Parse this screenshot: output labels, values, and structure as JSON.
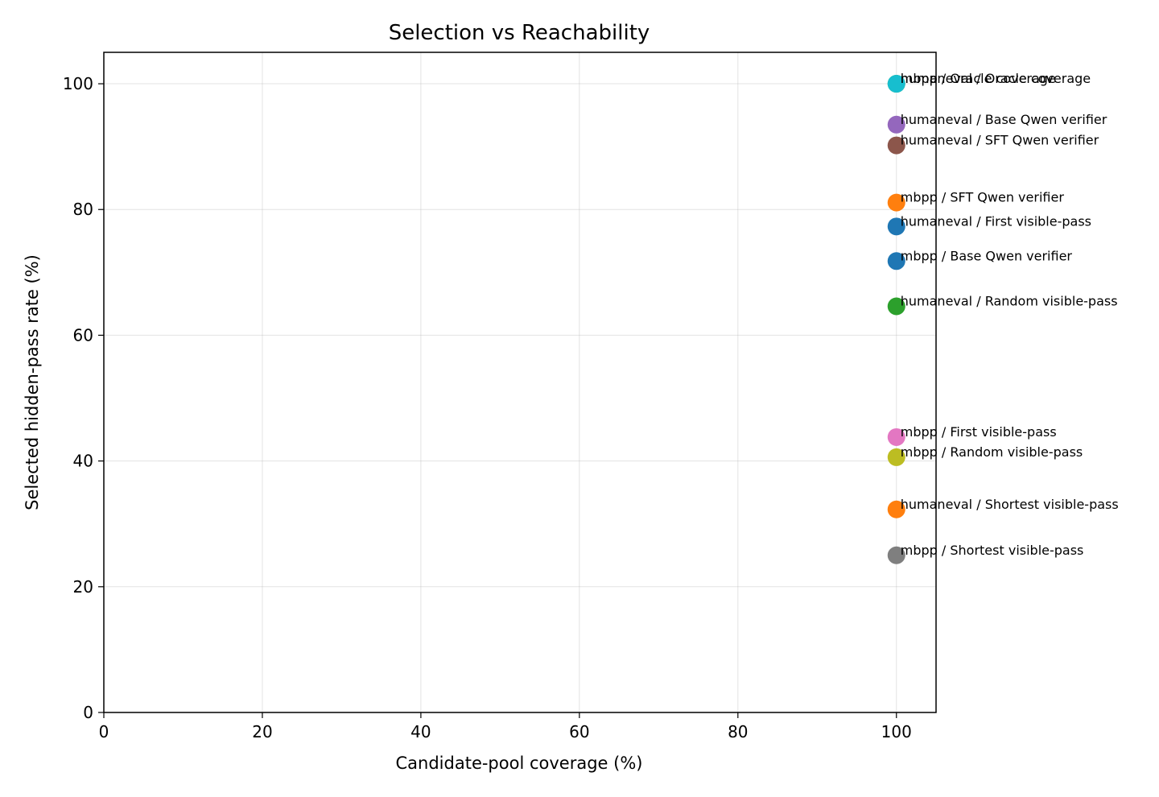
{
  "chart_data": {
    "type": "scatter",
    "title": "Selection vs Reachability",
    "xlabel": "Candidate-pool coverage (%)",
    "ylabel": "Selected hidden-pass rate (%)",
    "xlim": [
      0,
      105
    ],
    "ylim": [
      0,
      105
    ],
    "xticks": [
      0,
      20,
      40,
      60,
      80,
      100
    ],
    "yticks": [
      0,
      20,
      40,
      60,
      80,
      100
    ],
    "grid": true,
    "points": [
      {
        "label": "mbpp / Oracle coverage",
        "x": 100,
        "y": 100,
        "color": "#2ca02c"
      },
      {
        "label": "humaneval / Oracle coverage",
        "x": 100,
        "y": 100,
        "color": "#17becf"
      },
      {
        "label": "humaneval / Base Qwen verifier",
        "x": 100,
        "y": 93.5,
        "color": "#9467bd"
      },
      {
        "label": "humaneval / SFT Qwen verifier",
        "x": 100,
        "y": 90.2,
        "color": "#8c564b"
      },
      {
        "label": "mbpp / SFT Qwen verifier",
        "x": 100,
        "y": 81.1,
        "color": "#ff7f0e"
      },
      {
        "label": "humaneval / First visible-pass",
        "x": 100,
        "y": 77.3,
        "color": "#1f77b4"
      },
      {
        "label": "mbpp / Base Qwen verifier",
        "x": 100,
        "y": 71.8,
        "color": "#1f77b4"
      },
      {
        "label": "humaneval / Random visible-pass",
        "x": 100,
        "y": 64.6,
        "color": "#2ca02c"
      },
      {
        "label": "mbpp / First visible-pass",
        "x": 100,
        "y": 43.8,
        "color": "#e377c2"
      },
      {
        "label": "mbpp / Random visible-pass",
        "x": 100,
        "y": 40.6,
        "color": "#bcbd22"
      },
      {
        "label": "humaneval / Shortest visible-pass",
        "x": 100,
        "y": 32.3,
        "color": "#ff7f0e"
      },
      {
        "label": "mbpp / Shortest visible-pass",
        "x": 100,
        "y": 25.0,
        "color": "#7f7f7f"
      }
    ]
  }
}
